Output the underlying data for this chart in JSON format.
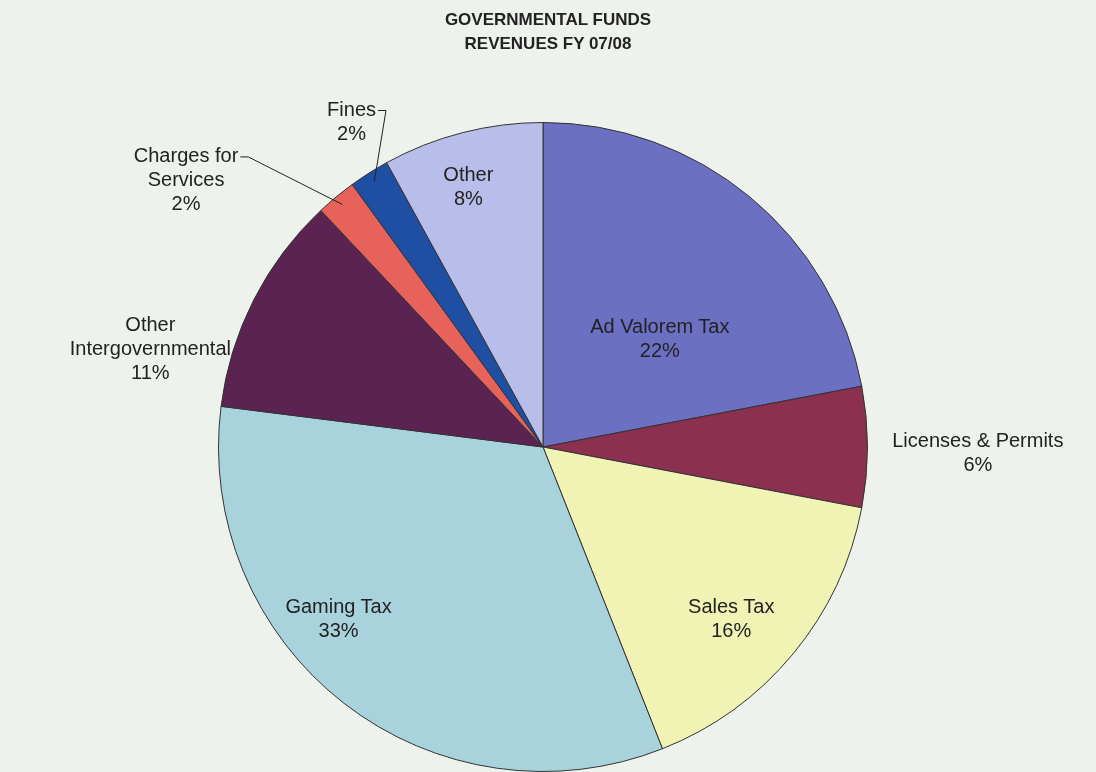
{
  "chart_data": {
    "type": "pie",
    "title": "GOVERNMENTAL FUNDS REVENUES FY 07/08",
    "categories": [
      "Ad Valorem Tax",
      "Licenses & Permits",
      "Sales Tax",
      "Gaming Tax",
      "Other Intergovernmental",
      "Charges for Services",
      "Fines",
      "Other"
    ],
    "values": [
      22,
      6,
      16,
      33,
      11,
      2,
      2,
      8
    ],
    "colors": [
      "#6b70c2",
      "#8c3050",
      "#f0f3b4",
      "#a9d3dc",
      "#5b2352",
      "#e8625c",
      "#1f4fa3",
      "#b9bde9"
    ],
    "value_labels": [
      "22%",
      "6%",
      "16%",
      "33%",
      "11%",
      "2%",
      "2%",
      "8%"
    ],
    "legend": false
  }
}
